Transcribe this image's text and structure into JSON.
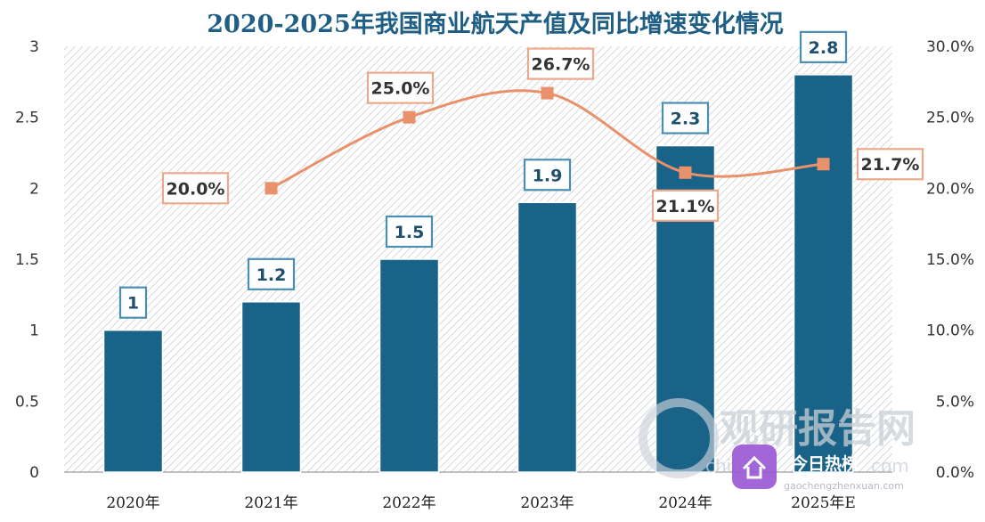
{
  "chart_data": {
    "type": "bar+line",
    "title": "2020-2025年我国商业航天产值及同比增速变化情况",
    "categories": [
      "2020年",
      "2021年",
      "2022年",
      "2023年",
      "2024年",
      "2025年E"
    ],
    "series": [
      {
        "values": [
          1,
          1.2,
          1.5,
          1.9,
          2.3,
          2.8
        ],
        "labels": [
          "1",
          "1.2",
          "1.5",
          "1.9",
          "2.3",
          "2.8"
        ],
        "type": "bar",
        "axis": "left",
        "color": "#1a6388"
      },
      {
        "values": [
          null,
          20.0,
          25.0,
          26.7,
          21.1,
          21.7
        ],
        "labels": [
          "",
          "20.0%",
          "25.0%",
          "26.7%",
          "21.1%",
          "21.7%"
        ],
        "type": "line",
        "axis": "right",
        "color": "#e9916b"
      }
    ],
    "y_left": {
      "min": 0,
      "max": 3,
      "ticks": [
        "0",
        "0.5",
        "1",
        "1.5",
        "2",
        "2.5",
        "3"
      ]
    },
    "y_right": {
      "min": 0,
      "max": 30,
      "ticks": [
        "0.0%",
        "5.0%",
        "10.0%",
        "15.0%",
        "20.0%",
        "25.0%",
        "30.0%"
      ]
    },
    "grid": false,
    "legend": "none"
  },
  "watermark": {
    "brand": "观研报告网",
    "site_partial": "china",
    "site_suffix": "com"
  },
  "badge": {
    "label": "今日热榜",
    "sub": "gaochengzhenxuan.com"
  }
}
